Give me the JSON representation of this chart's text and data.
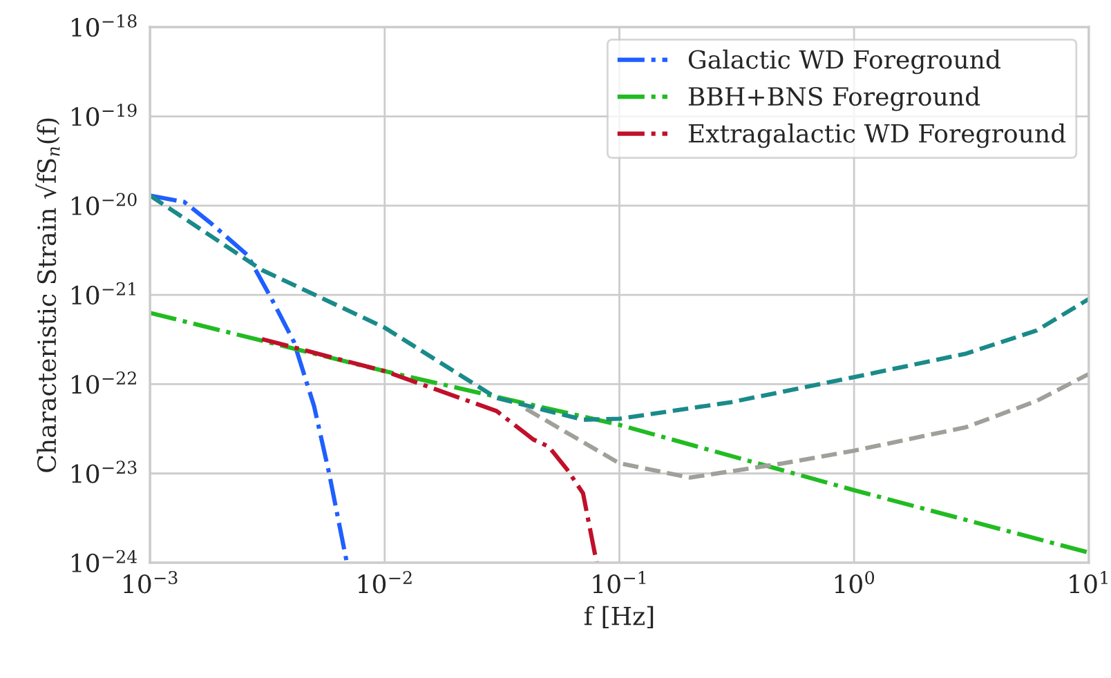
{
  "chart_data": {
    "type": "line",
    "xlabel": "f [Hz]",
    "ylabel": "Characteristic Strain √fS$_{n}$(f)",
    "log": "xy",
    "grid": true,
    "legend": "top right",
    "marker": "none",
    "xlim": [
      0.001,
      10
    ],
    "ylim": [
      1e-24,
      1e-18
    ],
    "xticks": [
      {
        "value": 0.001,
        "label": "10$^{−3}$"
      },
      {
        "value": 0.01,
        "label": "10$^{−2}$"
      },
      {
        "value": 0.1,
        "label": "10$^{−1}$"
      },
      {
        "value": 1,
        "label": "10$^{0}$"
      },
      {
        "value": 10,
        "label": "10$^{1}$"
      }
    ],
    "yticks": [
      {
        "value": 1e-24,
        "label": "10$^{−24}$"
      },
      {
        "value": 1e-23,
        "label": "10$^{−23}$"
      },
      {
        "value": 1e-22,
        "label": "10$^{−22}$"
      },
      {
        "value": 1e-21,
        "label": "10$^{−21}$"
      },
      {
        "value": 1e-20,
        "label": "10$^{−20}$"
      },
      {
        "value": 1e-19,
        "label": "10$^{−19}$"
      },
      {
        "value": 1e-18,
        "label": "10$^{−18}$"
      }
    ],
    "series": [
      {
        "name": "Galactic WD Foreground",
        "color": "#1f5fff",
        "line_style": "dashdot",
        "x": [
          0.001,
          0.0014,
          0.0018,
          0.0026,
          0.0033,
          0.0041,
          0.005,
          0.0058,
          0.0069
        ],
        "values": [
          1.3e-20,
          1.1e-20,
          6.5e-21,
          2.8e-21,
          9e-22,
          3e-22,
          5.7e-23,
          1e-23,
          1e-24
        ]
      },
      {
        "name": "BBH+BNS Foreground",
        "color": "#22bb22",
        "line_style": "dashdot",
        "x": [
          0.001,
          0.01,
          0.1,
          1,
          10
        ],
        "values": [
          6.3e-22,
          1.4e-22,
          3.5e-23,
          6.5e-24,
          1.3e-24
        ]
      },
      {
        "name": "Extragalactic WD Foreground",
        "color": "#c0102a",
        "line_style": "dashdot",
        "x": [
          0.003,
          0.01,
          0.03,
          0.043,
          0.05,
          0.06,
          0.07,
          0.08
        ],
        "values": [
          3.2e-22,
          1.4e-22,
          5e-23,
          2.4e-23,
          2e-23,
          1.1e-23,
          6e-24,
          1e-24
        ]
      },
      {
        "color": "#1a8a8a",
        "line_style": "dashed",
        "x": [
          0.001,
          0.003,
          0.01,
          0.03,
          0.07,
          0.1,
          0.3,
          1,
          3,
          6,
          10
        ],
        "values": [
          1.3e-20,
          1.9e-21,
          4.3e-22,
          7e-23,
          4e-23,
          4.1e-23,
          6.3e-23,
          1.2e-22,
          2.2e-22,
          4e-22,
          9e-22
        ]
      },
      {
        "color": "#a0a09a",
        "line_style": "dashed",
        "x": [
          0.04,
          0.1,
          0.2,
          0.5,
          1,
          3,
          6,
          10
        ],
        "values": [
          5.3e-23,
          1.3e-23,
          9e-24,
          1.3e-23,
          1.8e-23,
          3.3e-23,
          6.5e-23,
          1.3e-22
        ]
      }
    ]
  }
}
